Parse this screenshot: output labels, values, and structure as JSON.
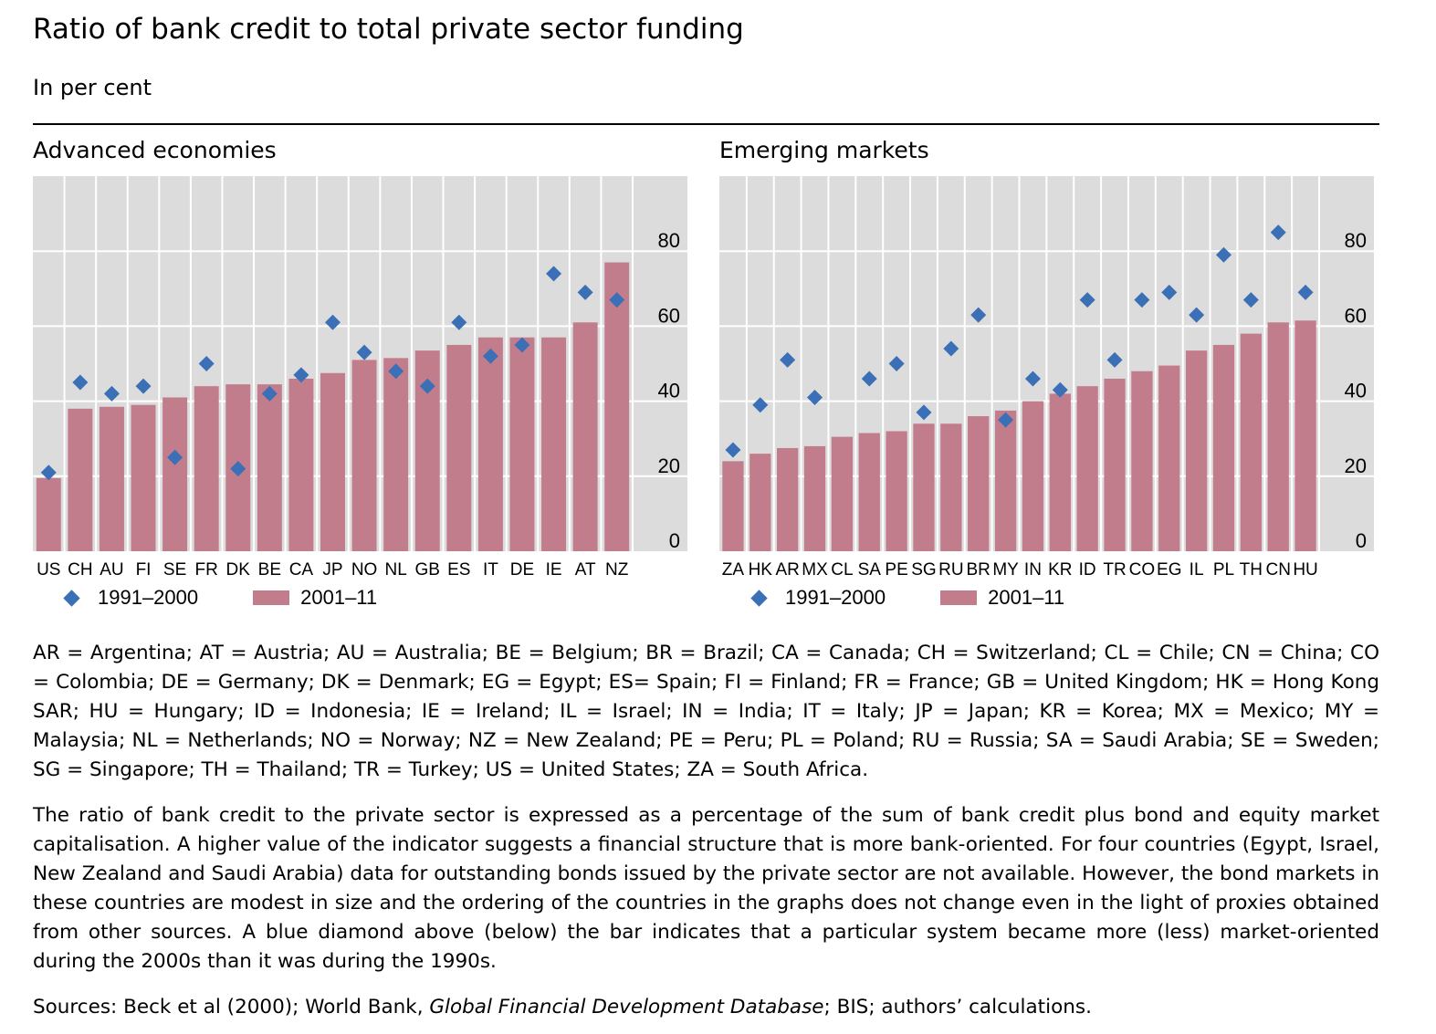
{
  "header": {
    "title": "Ratio of bank credit to total private sector funding",
    "subtitle": "In per cent"
  },
  "colors": {
    "bar": "#c27d8c",
    "diamond": "#3b6fb6",
    "plot_bg": "#dcdcdc",
    "grid": "#ffffff"
  },
  "legend": {
    "series1": "1991–2000",
    "series2": "2001–11"
  },
  "chart_data": [
    {
      "type": "bar",
      "title": "Advanced economies",
      "categories": [
        "US",
        "CH",
        "AU",
        "FI",
        "SE",
        "FR",
        "DK",
        "BE",
        "CA",
        "JP",
        "NO",
        "NL",
        "GB",
        "ES",
        "IT",
        "DE",
        "IE",
        "AT",
        "NZ"
      ],
      "series": [
        {
          "name": "1991–2000",
          "marker": "diamond",
          "values": [
            21,
            45,
            42,
            44,
            25,
            50,
            22,
            42,
            47,
            61,
            53,
            48,
            44,
            61,
            52,
            55,
            74,
            69,
            67
          ]
        },
        {
          "name": "2001–11",
          "values": [
            19.5,
            38,
            38.5,
            39,
            41,
            44,
            44.5,
            44.5,
            46,
            47.5,
            51,
            51.5,
            53.5,
            55,
            57,
            57,
            57,
            61,
            77
          ]
        }
      ],
      "yticks": [
        0,
        20,
        40,
        60,
        80
      ],
      "ylim": [
        0,
        100
      ],
      "grid": true,
      "yaxis_side": "right",
      "legend_position": "bottom"
    },
    {
      "type": "bar",
      "title": "Emerging markets",
      "categories": [
        "ZA",
        "HK",
        "AR",
        "MX",
        "CL",
        "SA",
        "PE",
        "SG",
        "RU",
        "BR",
        "MY",
        "IN",
        "KR",
        "ID",
        "TR",
        "CO",
        "EG",
        "IL",
        "PL",
        "TH",
        "CN",
        "HU"
      ],
      "series": [
        {
          "name": "1991–2000",
          "marker": "diamond",
          "values": [
            27,
            39,
            51,
            41,
            null,
            46,
            50,
            37,
            54,
            63,
            35,
            46,
            43,
            67,
            51,
            67,
            69,
            63,
            79,
            67,
            85,
            69
          ]
        },
        {
          "name": "2001–11",
          "values": [
            24,
            26,
            27.5,
            28,
            30.5,
            31.5,
            32,
            34,
            34,
            36,
            37.5,
            40,
            42,
            44,
            46,
            48,
            49.5,
            53.5,
            55,
            58,
            61,
            61.5
          ]
        }
      ],
      "yticks": [
        0,
        20,
        40,
        60,
        80
      ],
      "ylim": [
        0,
        100
      ],
      "grid": true,
      "yaxis_side": "right",
      "legend_position": "bottom"
    }
  ],
  "notes": {
    "abbreviations": "AR = Argentina; AT = Austria; AU = Australia; BE = Belgium; BR = Brazil; CA = Canada; CH = Switzerland; CL = Chile; CN = China; CO = Colombia; DE = Germany; DK = Denmark; EG = Egypt; ES= Spain; FI = Finland; FR = France; GB = United Kingdom; HK = Hong Kong SAR; HU = Hungary; ID = Indonesia; IE = Ireland; IL = Israel; IN = India; IT = Italy; JP = Japan; KR = Korea; MX = Mexico; MY = Malaysia; NL = Netherlands; NO = Norway; NZ = New Zealand; PE = Peru; PL = Poland; RU = Russia; SA = Saudi Arabia; SE = Sweden; SG = Singapore; TH = Thailand; TR = Turkey; US = United States; ZA = South Africa.",
    "description": "The ratio of bank credit to the private sector is expressed as a percentage of the sum of bank credit plus bond and equity market capitalisation. A higher value of the indicator suggests a financial structure that is more bank-oriented. For four countries (Egypt, Israel, New Zealand and Saudi Arabia) data for outstanding bonds issued by the private sector are not available. However, the bond markets in these countries are modest in size and the ordering of the countries in the graphs does not change even in the light of proxies obtained from other sources. A blue diamond above (below) the bar indicates that a particular system became more (less) market-oriented during the 2000s than it was during the 1990s.",
    "sources_prefix": "Sources: Beck et al (2000); World Bank, ",
    "sources_italic": "Global Financial Development Database",
    "sources_suffix": "; BIS; authors’ calculations."
  }
}
